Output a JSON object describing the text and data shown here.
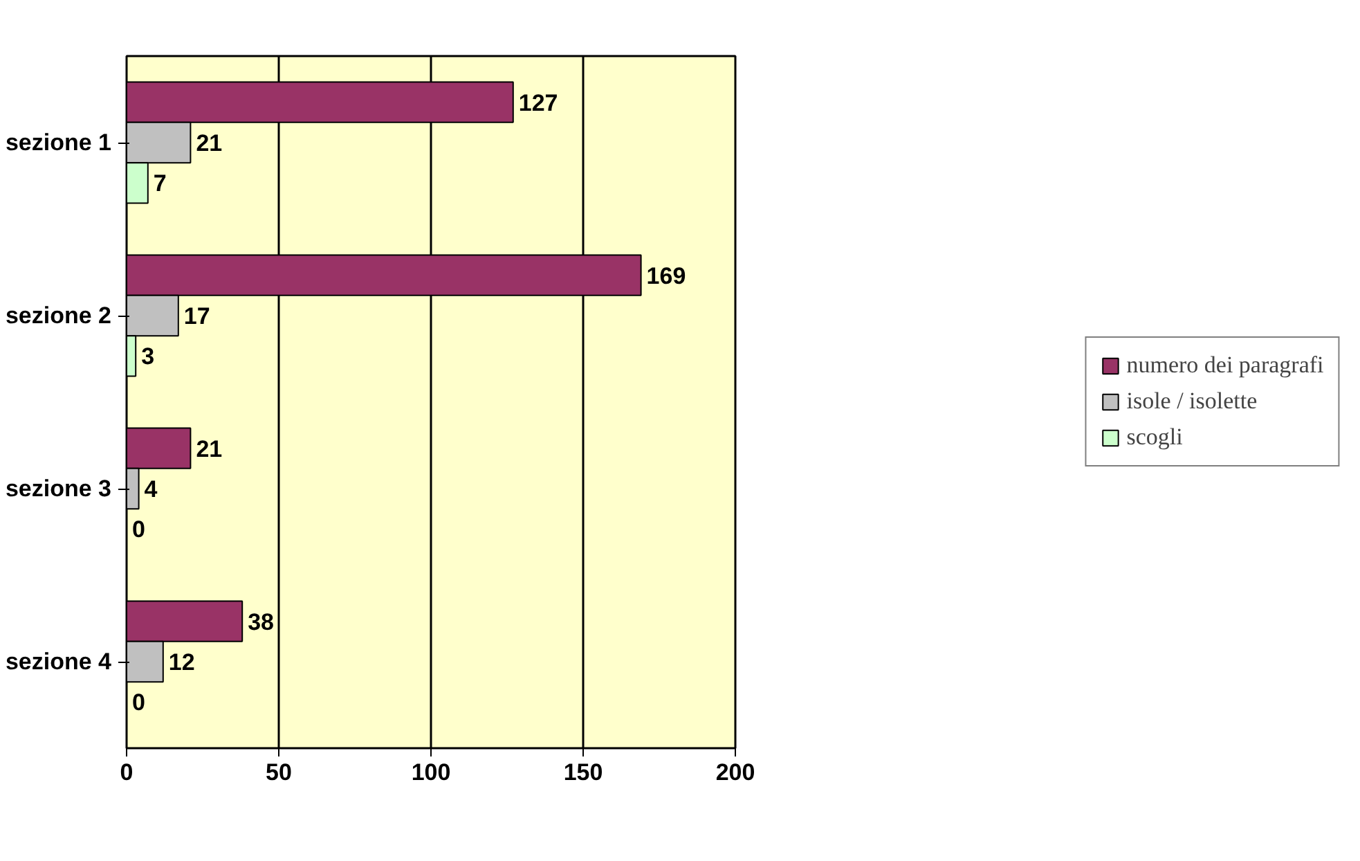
{
  "chart_data": {
    "type": "bar",
    "orientation": "horizontal",
    "categories": [
      "sezione 1",
      "sezione 2",
      "sezione 3",
      "sezione 4"
    ],
    "series": [
      {
        "name": "numero dei paragrafi",
        "color": "#993366",
        "values": [
          127,
          169,
          21,
          38
        ]
      },
      {
        "name": "isole / isolette",
        "color": "#c0c0c0",
        "values": [
          21,
          17,
          4,
          12
        ]
      },
      {
        "name": "scogli",
        "color": "#ccffcc",
        "values": [
          7,
          3,
          0,
          0
        ]
      }
    ],
    "xlim": [
      0,
      200
    ],
    "xticks": [
      0,
      50,
      100,
      150,
      200
    ],
    "grid": "x",
    "legend": "right",
    "data_labels": true
  }
}
